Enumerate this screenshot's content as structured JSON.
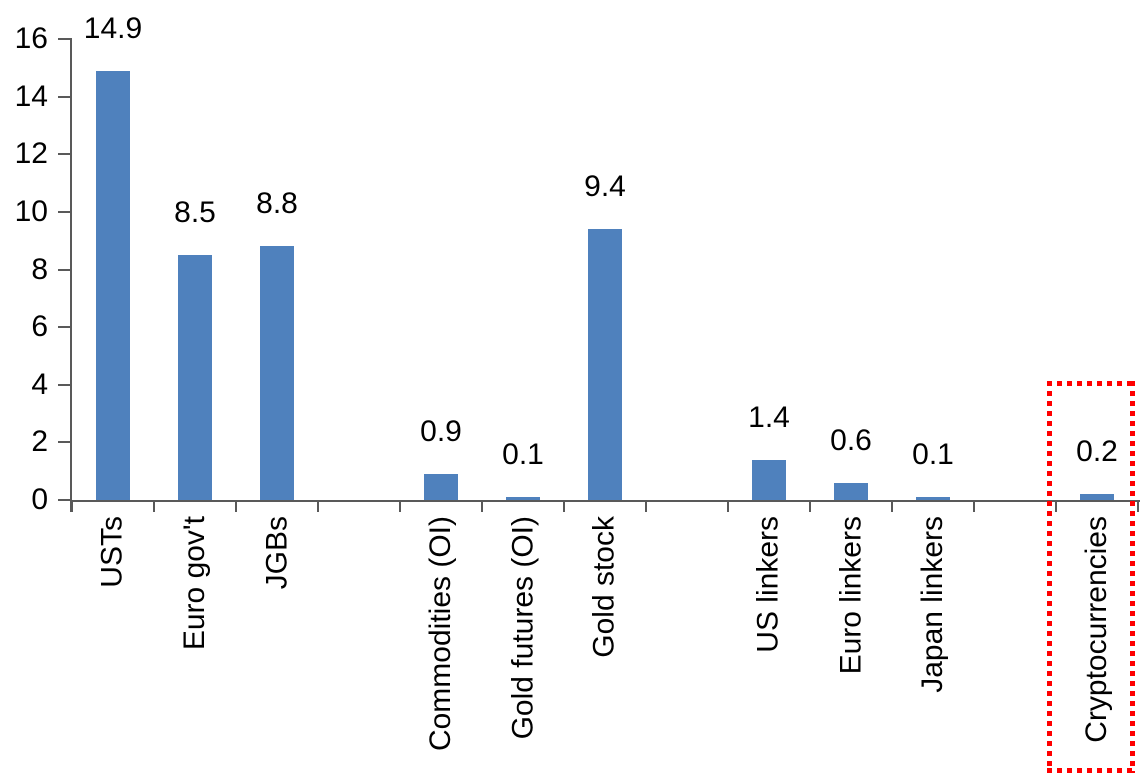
{
  "chart_data": {
    "type": "bar",
    "title": "",
    "xlabel": "",
    "ylabel": "",
    "categories": [
      "USTs",
      "Euro gov't",
      "JGBs",
      "",
      "Commodities (OI)",
      "Gold futures (OI)",
      "Gold stock",
      "",
      "US linkers",
      "Euro linkers",
      "Japan linkers",
      "",
      "Cryptocurrencies"
    ],
    "values": [
      14.9,
      8.5,
      8.8,
      null,
      0.9,
      0.1,
      9.4,
      null,
      1.4,
      0.6,
      0.1,
      null,
      0.2
    ],
    "data_labels": [
      "14.9",
      "8.5",
      "8.8",
      "",
      "0.9",
      "0.1",
      "9.4",
      "",
      "1.4",
      "0.6",
      "0.1",
      "",
      "0.2"
    ],
    "ylim": [
      0,
      16
    ],
    "yticks": [
      0,
      2,
      4,
      6,
      8,
      10,
      12,
      14,
      16
    ],
    "grid": false,
    "legend": "none",
    "bar_color": "#4f81bd",
    "axis_color": "#595959",
    "text_color": "#000000",
    "highlight": {
      "category": "Cryptocurrencies",
      "style": "dotted-rectangle",
      "color": "#ff0000"
    }
  }
}
